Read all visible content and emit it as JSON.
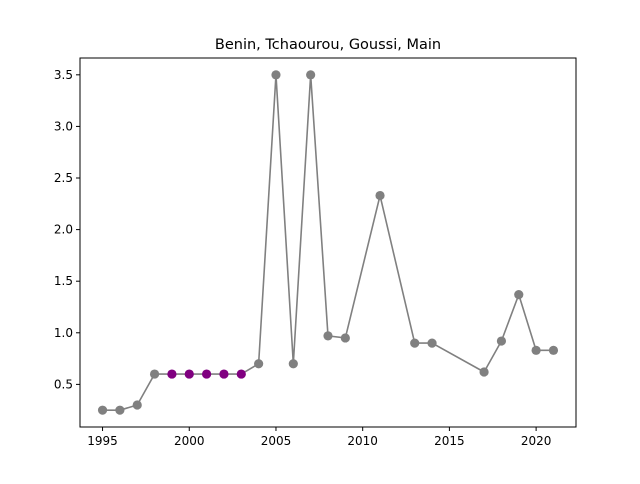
{
  "chart_data": {
    "type": "line",
    "title": "Benin, Tchaourou, Goussi, Main",
    "xlabel": "",
    "ylabel": "",
    "xlim": [
      1993.7,
      2022.3
    ],
    "ylim": [
      0.087,
      3.663
    ],
    "xticks": [
      1995,
      2000,
      2005,
      2010,
      2015,
      2020
    ],
    "yticks": [
      0.5,
      1.0,
      1.5,
      2.0,
      2.5,
      3.0,
      3.5
    ],
    "xtick_labels": [
      "1995",
      "2000",
      "2005",
      "2010",
      "2015",
      "2020"
    ],
    "ytick_labels": [
      "0.5",
      "1.0",
      "1.5",
      "2.0",
      "2.5",
      "3.0",
      "3.5"
    ],
    "grid": false,
    "legend": "none",
    "line_color": "#808080",
    "points": [
      {
        "x": 1995,
        "y": 0.25,
        "color": "#808080"
      },
      {
        "x": 1996,
        "y": 0.25,
        "color": "#808080"
      },
      {
        "x": 1997,
        "y": 0.3,
        "color": "#808080"
      },
      {
        "x": 1998,
        "y": 0.6,
        "color": "#808080"
      },
      {
        "x": 1999,
        "y": 0.6,
        "color": "#800080"
      },
      {
        "x": 2000,
        "y": 0.6,
        "color": "#800080"
      },
      {
        "x": 2001,
        "y": 0.6,
        "color": "#800080"
      },
      {
        "x": 2002,
        "y": 0.6,
        "color": "#800080"
      },
      {
        "x": 2003,
        "y": 0.6,
        "color": "#800080"
      },
      {
        "x": 2004,
        "y": 0.7,
        "color": "#808080"
      },
      {
        "x": 2005,
        "y": 3.5,
        "color": "#808080"
      },
      {
        "x": 2006,
        "y": 0.7,
        "color": "#808080"
      },
      {
        "x": 2007,
        "y": 3.5,
        "color": "#808080"
      },
      {
        "x": 2008,
        "y": 0.97,
        "color": "#808080"
      },
      {
        "x": 2009,
        "y": 0.95,
        "color": "#808080"
      },
      {
        "x": 2011,
        "y": 2.33,
        "color": "#808080"
      },
      {
        "x": 2013,
        "y": 0.9,
        "color": "#808080"
      },
      {
        "x": 2014,
        "y": 0.9,
        "color": "#808080"
      },
      {
        "x": 2017,
        "y": 0.62,
        "color": "#808080"
      },
      {
        "x": 2018,
        "y": 0.92,
        "color": "#808080"
      },
      {
        "x": 2019,
        "y": 1.37,
        "color": "#808080"
      },
      {
        "x": 2020,
        "y": 0.83,
        "color": "#808080"
      },
      {
        "x": 2021,
        "y": 0.83,
        "color": "#808080"
      }
    ]
  }
}
